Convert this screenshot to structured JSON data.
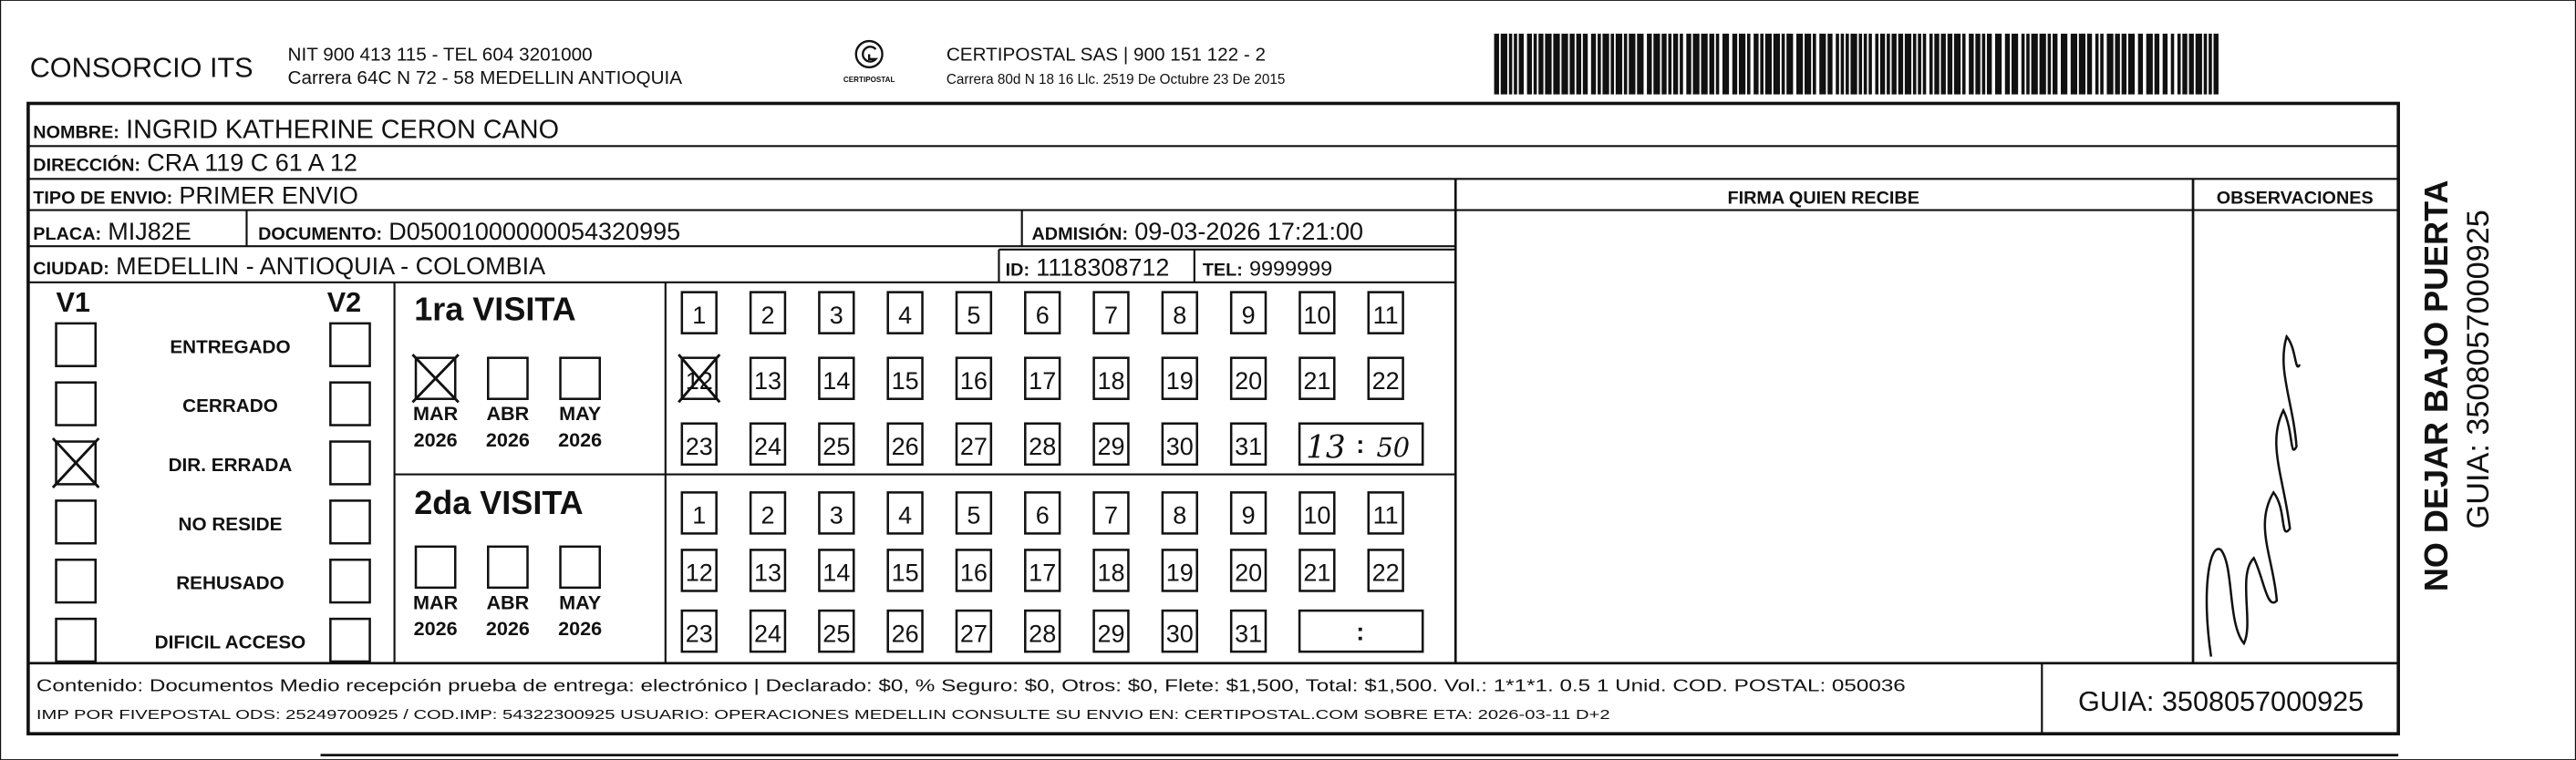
{
  "header": {
    "company": "CONSORCIO ITS",
    "company_info": [
      "NIT 900 413 115 - TEL 604 3201000",
      "Carrera 64C N 72 - 58 MEDELLIN ANTIOQUIA"
    ],
    "logo_caption": "CERTIPOSTAL",
    "carrier_info": [
      "CERTIPOSTAL SAS | 900 151 122 - 2",
      "Carrera 80d N 18 16 Llc. 2519 De Octubre 23 De 2015"
    ]
  },
  "recipient": {
    "name_label": "NOMBRE:",
    "name": "INGRID KATHERINE CERON CANO",
    "address_label": "DIRECCIÓN:",
    "address": "CRA 119 C  61 A 12",
    "shipment_label": "TIPO DE ENVIO:",
    "shipment": "PRIMER ENVIO",
    "plate_label": "PLACA:",
    "plate": "MIJ82E",
    "document_label": "DOCUMENTO:",
    "document": "D05001000000054320995",
    "admission_label": "ADMISIÓN:",
    "admission": "09-03-2026 17:21:00",
    "city_label": "CIUDAD:",
    "city": "MEDELLIN - ANTIOQUIA - COLOMBIA",
    "id_label": "ID:",
    "id": "1118308712",
    "phone_label": "TEL:",
    "phone": "9999999"
  },
  "columns": {
    "signature": "FIRMA QUIEN RECIBE",
    "observations": "OBSERVACIONES"
  },
  "status": {
    "v1": "V1",
    "v2": "V2",
    "options": [
      "ENTREGADO",
      "CERRADO",
      "DIR. ERRADA",
      "NO RESIDE",
      "REHUSADO",
      "DIFICIL ACCESO"
    ],
    "v1_checked": [
      false,
      false,
      true,
      false,
      false,
      false
    ],
    "v2_checked": [
      false,
      false,
      false,
      false,
      false,
      false
    ]
  },
  "months": [
    {
      "name": "MAR",
      "year": "2026"
    },
    {
      "name": "ABR",
      "year": "2026"
    },
    {
      "name": "MAY",
      "year": "2026"
    }
  ],
  "days": [
    1,
    2,
    3,
    4,
    5,
    6,
    7,
    8,
    9,
    10,
    11,
    12,
    13,
    14,
    15,
    16,
    17,
    18,
    19,
    20,
    21,
    22,
    23,
    24,
    25,
    26,
    27,
    28,
    29,
    30,
    31
  ],
  "time_separator": ":",
  "visits": [
    {
      "title": "1ra VISITA",
      "month_checked": [
        true,
        false,
        false
      ],
      "day_crossed": 12,
      "hour": "13",
      "minute": "50"
    },
    {
      "title": "2da VISITA",
      "month_checked": [
        false,
        false,
        false
      ]
    }
  ],
  "footer": {
    "content": "Contenido: Documentos Medio recepción prueba de entrega: electrónico | Declarado: $0, % Seguro: $0, Otros: $0, Flete: $1,500, Total: $1,500. Vol.: 1*1*1. 0.5  1 Unid. COD. POSTAL: 050036",
    "print_info": "IMP POR FIVEPOSTAL ODS: 25249700925 / COD.IMP: 54322300925 USUARIO: OPERACIONES MEDELLIN CONSULTE SU ENVIO EN: CERTIPOSTAL.COM SOBRE ETA: 2026-03-11 D+2",
    "guide": "GUIA: 3508057000925"
  },
  "side": {
    "warning": "NO DEJAR BAJO PUERTA",
    "guide": "GUIA: 3508057000925"
  }
}
